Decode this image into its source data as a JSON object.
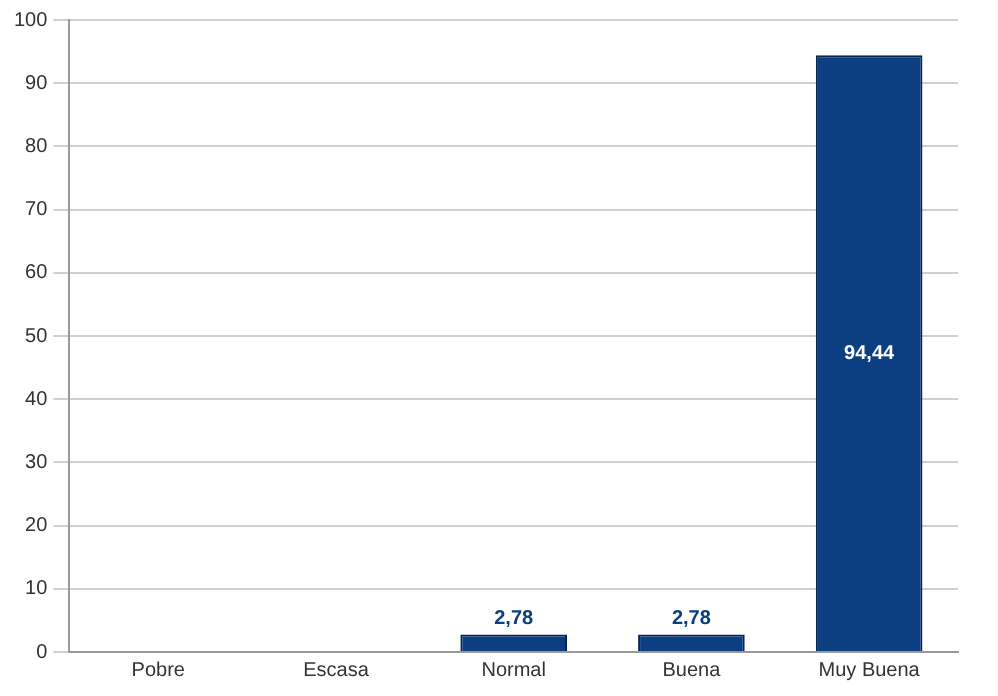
{
  "chart_data": {
    "type": "bar",
    "categories": [
      "Pobre",
      "Escasa",
      "Normal",
      "Buena",
      "Muy Buena"
    ],
    "values": [
      0,
      0,
      2.78,
      2.78,
      94.44
    ],
    "value_labels": [
      null,
      null,
      "2,78",
      "2,78",
      "94,44"
    ],
    "color": "#0b3f82",
    "ylim": [
      0,
      100
    ],
    "yticks": [
      0,
      10,
      20,
      30,
      40,
      50,
      60,
      70,
      80,
      90,
      100
    ],
    "grid": "y",
    "legend": false
  }
}
